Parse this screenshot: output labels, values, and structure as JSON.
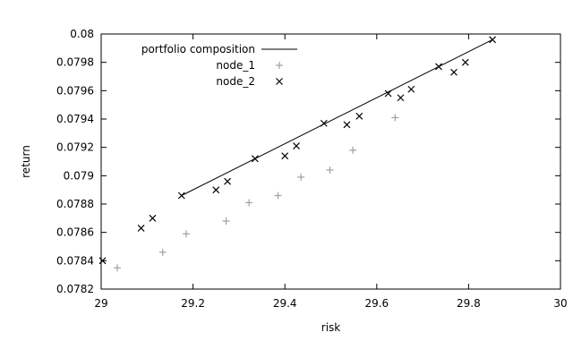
{
  "chart_data": {
    "type": "scatter",
    "title": "",
    "xlabel": "risk",
    "ylabel": "return",
    "xlim": [
      29,
      30
    ],
    "ylim": [
      0.0782,
      0.08
    ],
    "x_ticks": [
      29,
      29.2,
      29.4,
      29.6,
      29.8,
      30
    ],
    "x_tick_labels": [
      "29",
      "29.2",
      "29.4",
      "29.6",
      "29.8",
      "30"
    ],
    "y_ticks": [
      0.0782,
      0.0784,
      0.0786,
      0.0788,
      0.079,
      0.0792,
      0.0794,
      0.0796,
      0.0798,
      0.08
    ],
    "y_tick_labels": [
      "0.0782",
      "0.0784",
      "0.0786",
      "0.0788",
      "0.079",
      "0.0792",
      "0.0794",
      "0.0796",
      "0.0798",
      "0.08"
    ],
    "grid": false,
    "legend_position": "top-left",
    "series": [
      {
        "name": "portfolio composition",
        "kind": "line",
        "color": "#000000",
        "points": [
          [
            29.175,
            0.07886
          ],
          [
            29.852,
            0.07996
          ]
        ]
      },
      {
        "name": "node_1",
        "kind": "plus",
        "color": "#a0a0a0",
        "points": [
          [
            29.035,
            0.07835
          ],
          [
            29.134,
            0.07846
          ],
          [
            29.185,
            0.07859
          ],
          [
            29.272,
            0.07868
          ],
          [
            29.322,
            0.07881
          ],
          [
            29.385,
            0.07886
          ],
          [
            29.435,
            0.07899
          ],
          [
            29.498,
            0.07904
          ],
          [
            29.548,
            0.07918
          ],
          [
            29.64,
            0.07941
          ]
        ]
      },
      {
        "name": "node_2",
        "kind": "cross",
        "color": "#000000",
        "points": [
          [
            29.003,
            0.0784
          ],
          [
            29.087,
            0.07863
          ],
          [
            29.112,
            0.0787
          ],
          [
            29.175,
            0.07886
          ],
          [
            29.25,
            0.0789
          ],
          [
            29.275,
            0.07896
          ],
          [
            29.335,
            0.07912
          ],
          [
            29.4,
            0.07914
          ],
          [
            29.425,
            0.07921
          ],
          [
            29.485,
            0.07937
          ],
          [
            29.535,
            0.07936
          ],
          [
            29.562,
            0.07942
          ],
          [
            29.625,
            0.07958
          ],
          [
            29.652,
            0.07955
          ],
          [
            29.675,
            0.07961
          ],
          [
            29.735,
            0.07977
          ],
          [
            29.768,
            0.07973
          ],
          [
            29.793,
            0.0798
          ],
          [
            29.852,
            0.07996
          ]
        ]
      }
    ]
  }
}
